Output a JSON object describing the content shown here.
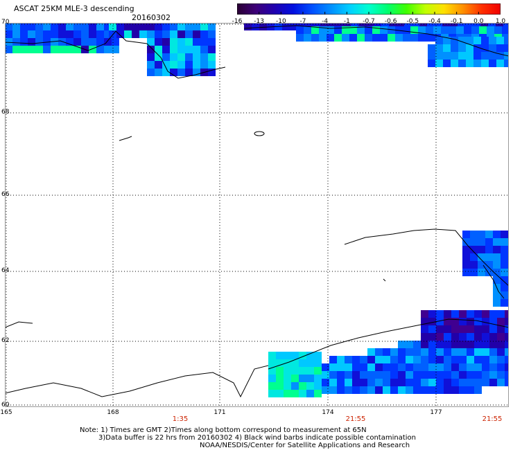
{
  "header": {
    "title": "ASCAT 25KM MLE-3 descending",
    "date": "20160302"
  },
  "colorbar": {
    "ticks": [
      "-16",
      "-13",
      "-10",
      "-7",
      "-4",
      "-1",
      "-0.7",
      "-0.6",
      "-0.5",
      "-0.4",
      "-0.1",
      "0.0",
      "1.0"
    ],
    "colors": [
      "#2a0033",
      "#3d0078",
      "#2000b0",
      "#0010e0",
      "#0050ff",
      "#0090ff",
      "#00d0ff",
      "#00ffd0",
      "#00ff70",
      "#40ff00",
      "#c0ff00",
      "#ffe000",
      "#ff9000",
      "#ff3000",
      "#f00000"
    ]
  },
  "map": {
    "lat_labels": [
      "70",
      "68",
      "66",
      "64",
      "62",
      "60"
    ],
    "lon_labels": [
      "165",
      "168",
      "171",
      "174",
      "177"
    ],
    "time_labels": [
      "1:35",
      "21:55",
      "21:55"
    ]
  },
  "notes": {
    "line1": "Note: 1) Times are GMT 2)Times along bottom correspond to measurement at 65N",
    "line2": "3)Data buffer is 22 hrs from 20160302 4) Black wind barbs indicate possible contamination",
    "line3": "NOAA/NESDIS/Center for Satellite Applications and Research"
  }
}
